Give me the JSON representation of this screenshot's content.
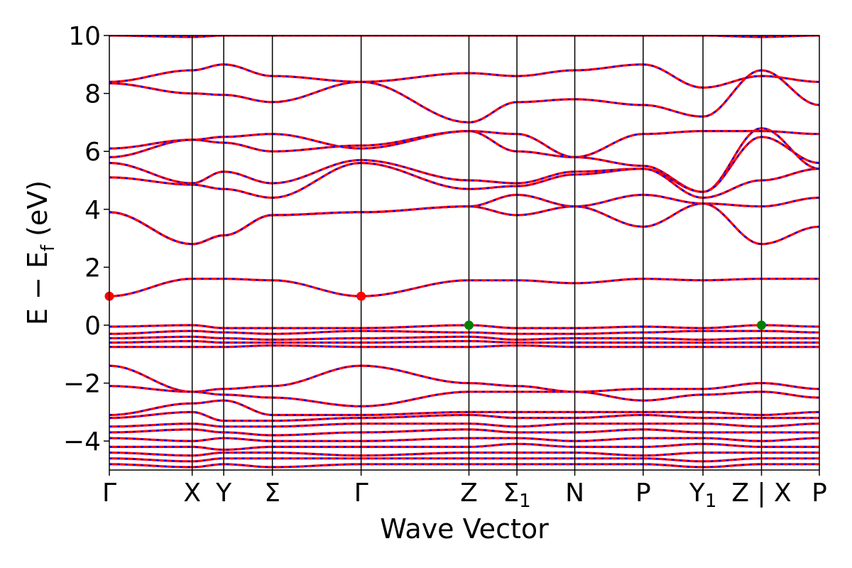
{
  "chart_data": {
    "type": "line",
    "title": "",
    "xlabel": "Wave Vector",
    "ylabel": {
      "base": "E − E",
      "subscript": "f",
      "unit": " (eV)"
    },
    "ylim": [
      -5,
      10
    ],
    "yticks": [
      {
        "value": 10,
        "label": "10"
      },
      {
        "value": 8,
        "label": "8"
      },
      {
        "value": 6,
        "label": "6"
      },
      {
        "value": 4,
        "label": "4"
      },
      {
        "value": 2,
        "label": "2"
      },
      {
        "value": 0,
        "label": "0"
      },
      {
        "value": -2,
        "label": "−2"
      },
      {
        "value": -4,
        "label": "−4"
      }
    ],
    "xlim": [
      0,
      10.8
    ],
    "kpoints": [
      {
        "x": 0.0,
        "label": "Γ",
        "sub": ""
      },
      {
        "x": 1.26,
        "label": "X",
        "sub": ""
      },
      {
        "x": 1.74,
        "label": "Y",
        "sub": ""
      },
      {
        "x": 2.48,
        "label": "Σ",
        "sub": ""
      },
      {
        "x": 3.83,
        "label": "Γ",
        "sub": ""
      },
      {
        "x": 5.47,
        "label": "Z",
        "sub": ""
      },
      {
        "x": 6.2,
        "label": "Σ",
        "sub": "1"
      },
      {
        "x": 7.08,
        "label": "N",
        "sub": ""
      },
      {
        "x": 8.12,
        "label": "P",
        "sub": ""
      },
      {
        "x": 9.03,
        "label": "Y",
        "sub": "1"
      },
      {
        "x": 9.92,
        "label": "Z | X",
        "sub": ""
      },
      {
        "x": 10.8,
        "label": "P",
        "sub": ""
      }
    ],
    "series": [
      {
        "color": "#ff0000",
        "style": "solid"
      },
      {
        "color": "#0000ff",
        "style": "dashed"
      }
    ],
    "markers": [
      {
        "x": 0.0,
        "y": 1.0,
        "color": "#ff0000"
      },
      {
        "x": 3.83,
        "y": 1.0,
        "color": "#ff0000"
      },
      {
        "x": 5.47,
        "y": 0.0,
        "color": "#008000"
      },
      {
        "x": 9.92,
        "y": 0.0,
        "color": "#008000"
      }
    ],
    "bands": [
      [
        10.0,
        9.95,
        10.0,
        10.0,
        10.0,
        10.0,
        10.0,
        10.0,
        10.0,
        10.0,
        9.95,
        10.0
      ],
      [
        8.4,
        8.8,
        9.0,
        8.6,
        8.4,
        8.7,
        8.6,
        8.8,
        9.0,
        8.2,
        8.6,
        8.4
      ],
      [
        8.35,
        8.0,
        7.95,
        7.7,
        8.4,
        7.0,
        7.7,
        7.8,
        7.6,
        7.2,
        8.8,
        7.6
      ],
      [
        6.1,
        6.4,
        6.5,
        6.6,
        6.1,
        6.7,
        6.6,
        5.8,
        6.6,
        6.7,
        6.7,
        6.6
      ],
      [
        5.8,
        6.4,
        6.3,
        6.0,
        6.2,
        6.7,
        6.0,
        5.8,
        5.5,
        4.6,
        6.8,
        5.4
      ],
      [
        5.6,
        4.9,
        5.3,
        4.9,
        5.7,
        5.0,
        4.9,
        5.3,
        5.4,
        4.6,
        6.5,
        5.6
      ],
      [
        5.1,
        4.85,
        4.7,
        4.4,
        5.6,
        4.7,
        4.8,
        5.2,
        5.4,
        4.4,
        5.0,
        5.4
      ],
      [
        3.9,
        2.8,
        3.1,
        3.8,
        3.9,
        4.1,
        4.5,
        4.1,
        4.5,
        4.2,
        4.1,
        4.4
      ],
      [
        3.9,
        2.8,
        3.1,
        3.8,
        3.9,
        4.1,
        3.8,
        4.1,
        3.4,
        4.2,
        2.8,
        3.4
      ],
      [
        1.0,
        1.6,
        1.6,
        1.55,
        1.0,
        1.55,
        1.55,
        1.45,
        1.6,
        1.55,
        1.6,
        1.6
      ],
      [
        -0.05,
        0.0,
        -0.1,
        -0.1,
        -0.1,
        0.0,
        -0.1,
        -0.1,
        -0.05,
        -0.1,
        0.0,
        -0.05
      ],
      [
        -0.3,
        -0.2,
        -0.25,
        -0.3,
        -0.2,
        -0.25,
        -0.3,
        -0.3,
        -0.25,
        -0.2,
        -0.2,
        -0.25
      ],
      [
        -0.45,
        -0.4,
        -0.45,
        -0.5,
        -0.45,
        -0.4,
        -0.5,
        -0.45,
        -0.45,
        -0.5,
        -0.45,
        -0.45
      ],
      [
        -0.6,
        -0.55,
        -0.6,
        -0.6,
        -0.6,
        -0.55,
        -0.6,
        -0.6,
        -0.6,
        -0.6,
        -0.6,
        -0.6
      ],
      [
        -0.75,
        -0.75,
        -0.75,
        -0.7,
        -0.75,
        -0.75,
        -0.7,
        -0.75,
        -0.75,
        -0.75,
        -0.75,
        -0.75
      ],
      [
        -1.4,
        -2.3,
        -2.2,
        -2.1,
        -1.4,
        -2.0,
        -2.1,
        -2.3,
        -2.2,
        -2.2,
        -2.0,
        -2.2
      ],
      [
        -2.1,
        -2.3,
        -2.4,
        -2.5,
        -2.8,
        -2.3,
        -2.3,
        -2.3,
        -2.6,
        -2.4,
        -2.3,
        -2.5
      ],
      [
        -3.1,
        -2.7,
        -2.6,
        -3.1,
        -3.1,
        -3.0,
        -3.0,
        -3.0,
        -3.0,
        -3.0,
        -3.1,
        -3.0
      ],
      [
        -3.2,
        -3.0,
        -3.3,
        -3.3,
        -3.2,
        -3.1,
        -3.2,
        -3.2,
        -3.1,
        -3.2,
        -3.2,
        -3.2
      ],
      [
        -3.5,
        -3.4,
        -3.5,
        -3.5,
        -3.4,
        -3.4,
        -3.5,
        -3.4,
        -3.4,
        -3.4,
        -3.5,
        -3.4
      ],
      [
        -3.7,
        -3.6,
        -3.7,
        -3.8,
        -3.7,
        -3.6,
        -3.7,
        -3.7,
        -3.6,
        -3.7,
        -3.7,
        -3.7
      ],
      [
        -3.9,
        -4.0,
        -3.9,
        -4.0,
        -4.0,
        -3.9,
        -3.9,
        -4.0,
        -3.9,
        -3.9,
        -4.0,
        -3.9
      ],
      [
        -4.2,
        -4.2,
        -4.3,
        -4.2,
        -4.2,
        -4.2,
        -4.1,
        -4.2,
        -4.2,
        -4.1,
        -4.2,
        -4.2
      ],
      [
        -4.4,
        -4.5,
        -4.4,
        -4.4,
        -4.5,
        -4.4,
        -4.4,
        -4.4,
        -4.5,
        -4.4,
        -4.4,
        -4.4
      ],
      [
        -4.6,
        -4.7,
        -4.6,
        -4.6,
        -4.6,
        -4.6,
        -4.6,
        -4.6,
        -4.6,
        -4.7,
        -4.6,
        -4.6
      ],
      [
        -4.8,
        -4.9,
        -4.8,
        -4.9,
        -4.8,
        -4.8,
        -4.8,
        -4.8,
        -4.8,
        -4.9,
        -4.8,
        -4.8
      ]
    ]
  }
}
